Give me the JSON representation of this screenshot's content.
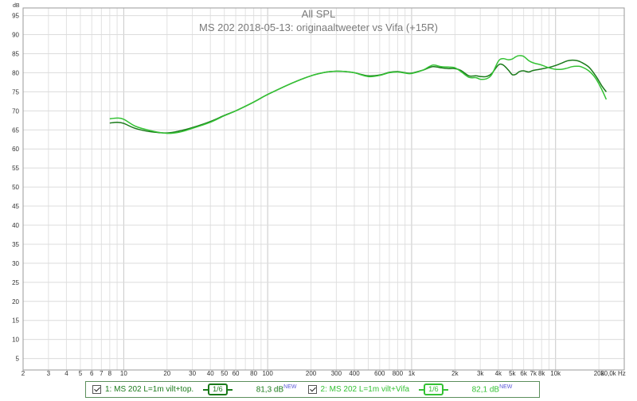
{
  "chart_data": {
    "type": "line",
    "title": "All SPL",
    "subtitle": "MS 202 2018-05-13: originaaltweeter vs Vifa (+15R)",
    "ylabel": "dB",
    "xlabel_unit": "Hz",
    "x_scale": "log",
    "xlim": [
      2,
      30000
    ],
    "ylim": [
      2,
      97
    ],
    "y_ticks": [
      5,
      10,
      15,
      20,
      25,
      30,
      35,
      40,
      45,
      50,
      55,
      60,
      65,
      70,
      75,
      80,
      85,
      90,
      95
    ],
    "x_tick_labels": [
      {
        "v": 2,
        "label": "2"
      },
      {
        "v": 3,
        "label": "3"
      },
      {
        "v": 4,
        "label": "4"
      },
      {
        "v": 5,
        "label": "5"
      },
      {
        "v": 6,
        "label": "6"
      },
      {
        "v": 7,
        "label": "7"
      },
      {
        "v": 8,
        "label": "8"
      },
      {
        "v": 10,
        "label": "10"
      },
      {
        "v": 20,
        "label": "20"
      },
      {
        "v": 30,
        "label": "30"
      },
      {
        "v": 40,
        "label": "40"
      },
      {
        "v": 50,
        "label": "50"
      },
      {
        "v": 60,
        "label": "60"
      },
      {
        "v": 80,
        "label": "80"
      },
      {
        "v": 100,
        "label": "100"
      },
      {
        "v": 200,
        "label": "200"
      },
      {
        "v": 300,
        "label": "300"
      },
      {
        "v": 400,
        "label": "400"
      },
      {
        "v": 600,
        "label": "600"
      },
      {
        "v": 800,
        "label": "800"
      },
      {
        "v": 1000,
        "label": "1k"
      },
      {
        "v": 2000,
        "label": "2k"
      },
      {
        "v": 3000,
        "label": "3k"
      },
      {
        "v": 4000,
        "label": "4k"
      },
      {
        "v": 5000,
        "label": "5k"
      },
      {
        "v": 6000,
        "label": "6k"
      },
      {
        "v": 7000,
        "label": "7k"
      },
      {
        "v": 8000,
        "label": "8k"
      },
      {
        "v": 10000,
        "label": "10k"
      },
      {
        "v": 20000,
        "label": "20k"
      },
      {
        "v": 30000,
        "label": "30,0k Hz"
      }
    ],
    "grid": true,
    "series": [
      {
        "name": "1: MS 202 L=1m vilt+top.",
        "color": "#1a7a1a",
        "points": [
          [
            8,
            66.8
          ],
          [
            9,
            67.0
          ],
          [
            10,
            66.7
          ],
          [
            12,
            65.4
          ],
          [
            15,
            64.6
          ],
          [
            20,
            64.2
          ],
          [
            25,
            64.8
          ],
          [
            30,
            65.6
          ],
          [
            40,
            67.2
          ],
          [
            50,
            68.8
          ],
          [
            60,
            70.0
          ],
          [
            80,
            72.3
          ],
          [
            100,
            74.3
          ],
          [
            150,
            77.4
          ],
          [
            200,
            79.2
          ],
          [
            250,
            80.1
          ],
          [
            300,
            80.4
          ],
          [
            350,
            80.3
          ],
          [
            400,
            80.0
          ],
          [
            500,
            79.2
          ],
          [
            600,
            79.4
          ],
          [
            700,
            80.1
          ],
          [
            800,
            80.3
          ],
          [
            900,
            80.0
          ],
          [
            1000,
            79.9
          ],
          [
            1200,
            80.7
          ],
          [
            1400,
            81.6
          ],
          [
            1600,
            81.3
          ],
          [
            1800,
            81.1
          ],
          [
            2000,
            81.1
          ],
          [
            2200,
            80.6
          ],
          [
            2500,
            79.2
          ],
          [
            2800,
            79.2
          ],
          [
            3000,
            79.0
          ],
          [
            3300,
            79.0
          ],
          [
            3600,
            79.8
          ],
          [
            4000,
            82.0
          ],
          [
            4300,
            82.1
          ],
          [
            4700,
            80.7
          ],
          [
            5000,
            79.5
          ],
          [
            5300,
            79.6
          ],
          [
            5600,
            80.3
          ],
          [
            6000,
            80.5
          ],
          [
            6500,
            80.2
          ],
          [
            7000,
            80.6
          ],
          [
            8000,
            81.0
          ],
          [
            9000,
            81.4
          ],
          [
            10000,
            81.9
          ],
          [
            11000,
            82.5
          ],
          [
            12000,
            83.1
          ],
          [
            13000,
            83.3
          ],
          [
            14000,
            83.2
          ],
          [
            15000,
            82.8
          ],
          [
            17000,
            81.5
          ],
          [
            19000,
            79.2
          ],
          [
            21000,
            76.5
          ],
          [
            22500,
            75.0
          ]
        ]
      },
      {
        "name": "2: MS 202 L=1m vilt+Vifa",
        "color": "#34c234",
        "points": [
          [
            8,
            67.9
          ],
          [
            9,
            68.1
          ],
          [
            10,
            67.8
          ],
          [
            12,
            66.0
          ],
          [
            15,
            64.9
          ],
          [
            20,
            64.1
          ],
          [
            25,
            64.5
          ],
          [
            30,
            65.4
          ],
          [
            40,
            67.0
          ],
          [
            50,
            68.7
          ],
          [
            60,
            70.0
          ],
          [
            80,
            72.3
          ],
          [
            100,
            74.3
          ],
          [
            150,
            77.4
          ],
          [
            200,
            79.2
          ],
          [
            250,
            80.1
          ],
          [
            300,
            80.4
          ],
          [
            350,
            80.3
          ],
          [
            400,
            80.0
          ],
          [
            500,
            79.0
          ],
          [
            600,
            79.3
          ],
          [
            700,
            80.0
          ],
          [
            800,
            80.2
          ],
          [
            900,
            79.9
          ],
          [
            1000,
            79.8
          ],
          [
            1200,
            80.7
          ],
          [
            1400,
            82.0
          ],
          [
            1600,
            81.6
          ],
          [
            1800,
            81.5
          ],
          [
            2000,
            81.3
          ],
          [
            2200,
            80.3
          ],
          [
            2500,
            78.8
          ],
          [
            2800,
            78.7
          ],
          [
            3000,
            78.3
          ],
          [
            3300,
            78.4
          ],
          [
            3600,
            79.5
          ],
          [
            4000,
            83.0
          ],
          [
            4300,
            83.7
          ],
          [
            4700,
            83.4
          ],
          [
            5000,
            83.6
          ],
          [
            5300,
            84.2
          ],
          [
            5600,
            84.5
          ],
          [
            6000,
            84.3
          ],
          [
            6500,
            83.2
          ],
          [
            7000,
            82.6
          ],
          [
            8000,
            82.0
          ],
          [
            9000,
            81.3
          ],
          [
            10000,
            80.9
          ],
          [
            11000,
            80.9
          ],
          [
            12000,
            81.2
          ],
          [
            13000,
            81.6
          ],
          [
            14000,
            81.7
          ],
          [
            15000,
            81.6
          ],
          [
            17000,
            80.5
          ],
          [
            19000,
            78.5
          ],
          [
            21000,
            75.5
          ],
          [
            22500,
            73.0
          ]
        ]
      }
    ]
  },
  "legend": {
    "items": [
      {
        "label": "1: MS 202 L=1m vilt+top.",
        "smoothing": "1/6",
        "level": "81,3 dB",
        "badge": "NEW",
        "color": "#1a7a1a"
      },
      {
        "label": "2: MS 202 L=1m vilt+Vifa",
        "smoothing": "1/6",
        "level": "82,1 dB",
        "badge": "NEW",
        "color": "#34c234"
      }
    ]
  }
}
